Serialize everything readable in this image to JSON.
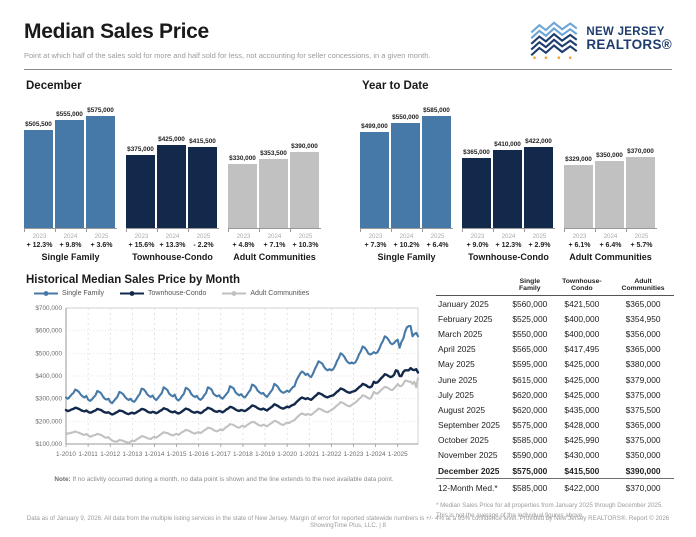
{
  "header": {
    "title": "Median Sales Price",
    "subtitle": "Point at which half of the sales sold for more and half sold for less, not accounting for seller concessions, in a given month.",
    "logo_line1": "NEW JERSEY",
    "logo_line2": "REALTORS®"
  },
  "colors": {
    "single_family": "#4679A8",
    "townhouse_condo": "#12294B",
    "adult_communities": "#C1C1C1",
    "logo_navy": "#1E3C6E",
    "logo_blue": "#6CA5D8",
    "logo_orange": "#F2A33A"
  },
  "historical": {
    "note_label": "Note:",
    "note_text": " If no activity occurred during a month, no data point is shown and the line extends to the next available data point."
  },
  "chart_data": [
    {
      "type": "bar",
      "title": "December",
      "scale_max": 575000,
      "groups": [
        {
          "label": "Single Family",
          "color_key": "single_family",
          "bars": [
            {
              "year": "2023",
              "value": 505500,
              "label": "$505,500",
              "pct": "+ 12.3%"
            },
            {
              "year": "2024",
              "value": 555000,
              "label": "$555,000",
              "pct": "+ 9.8%"
            },
            {
              "year": "2025",
              "value": 575000,
              "label": "$575,000",
              "pct": "+ 3.6%"
            }
          ]
        },
        {
          "label": "Townhouse-Condo",
          "color_key": "townhouse_condo",
          "bars": [
            {
              "year": "2023",
              "value": 375000,
              "label": "$375,000",
              "pct": "+ 15.6%"
            },
            {
              "year": "2024",
              "value": 425000,
              "label": "$425,000",
              "pct": "+ 13.3%"
            },
            {
              "year": "2025",
              "value": 415500,
              "label": "$415,500",
              "pct": "- 2.2%"
            }
          ]
        },
        {
          "label": "Adult Communities",
          "color_key": "adult_communities",
          "bars": [
            {
              "year": "2023",
              "value": 330000,
              "label": "$330,000",
              "pct": "+ 4.8%"
            },
            {
              "year": "2024",
              "value": 353500,
              "label": "$353,500",
              "pct": "+ 7.1%"
            },
            {
              "year": "2025",
              "value": 390000,
              "label": "$390,000",
              "pct": "+ 10.3%"
            }
          ]
        }
      ]
    },
    {
      "type": "bar",
      "title": "Year to Date",
      "scale_max": 585000,
      "groups": [
        {
          "label": "Single Family",
          "color_key": "single_family",
          "bars": [
            {
              "year": "2023",
              "value": 499000,
              "label": "$499,000",
              "pct": "+ 7.3%"
            },
            {
              "year": "2024",
              "value": 550000,
              "label": "$550,000",
              "pct": "+ 10.2%"
            },
            {
              "year": "2025",
              "value": 585000,
              "label": "$585,000",
              "pct": "+ 6.4%"
            }
          ]
        },
        {
          "label": "Townhouse-Condo",
          "color_key": "townhouse_condo",
          "bars": [
            {
              "year": "2023",
              "value": 365000,
              "label": "$365,000",
              "pct": "+ 9.0%"
            },
            {
              "year": "2024",
              "value": 410000,
              "label": "$410,000",
              "pct": "+ 12.3%"
            },
            {
              "year": "2025",
              "value": 422000,
              "label": "$422,000",
              "pct": "+ 2.9%"
            }
          ]
        },
        {
          "label": "Adult Communities",
          "color_key": "adult_communities",
          "bars": [
            {
              "year": "2023",
              "value": 329000,
              "label": "$329,000",
              "pct": "+ 6.1%"
            },
            {
              "year": "2024",
              "value": 350000,
              "label": "$350,000",
              "pct": "+ 6.4%"
            },
            {
              "year": "2025",
              "value": 370000,
              "label": "$370,000",
              "pct": "+ 5.7%"
            }
          ]
        }
      ]
    },
    {
      "type": "line",
      "title": "Historical Median Sales Price by Month",
      "x_description": "monthly, January 2010 through December 2025; values estimated from plot except 2025 (from table) and Decembers (from bar charts)",
      "x_tick_labels": [
        "1-2010",
        "1-2011",
        "1-2012",
        "1-2013",
        "1-2014",
        "1-2015",
        "1-2016",
        "1-2017",
        "1-2018",
        "1-2019",
        "1-2020",
        "1-2021",
        "1-2022",
        "1-2023",
        "1-2024",
        "1-2025"
      ],
      "ylim_k": [
        100,
        700
      ],
      "y_tick_labels": [
        "$100,000",
        "$200,000",
        "$300,000",
        "$400,000",
        "$500,000",
        "$600,000",
        "$700,000"
      ],
      "unit": "thousands of USD",
      "legend_position": "top-left",
      "series": [
        {
          "name": "Single Family",
          "color": "#4679A8",
          "values_k": [
            305,
            300,
            308,
            318,
            325,
            340,
            336,
            330,
            318,
            310,
            305,
            312,
            296,
            290,
            296,
            306,
            315,
            334,
            330,
            324,
            310,
            300,
            296,
            300,
            286,
            280,
            290,
            300,
            310,
            330,
            326,
            320,
            308,
            300,
            294,
            300,
            290,
            286,
            296,
            310,
            320,
            344,
            342,
            334,
            320,
            312,
            308,
            314,
            300,
            294,
            304,
            315,
            325,
            350,
            345,
            338,
            322,
            315,
            310,
            318,
            298,
            292,
            300,
            312,
            322,
            348,
            344,
            336,
            320,
            312,
            308,
            312,
            300,
            295,
            302,
            315,
            325,
            350,
            346,
            340,
            322,
            315,
            310,
            315,
            305,
            300,
            310,
            320,
            330,
            355,
            350,
            345,
            328,
            320,
            315,
            320,
            310,
            305,
            315,
            328,
            338,
            362,
            358,
            350,
            335,
            328,
            322,
            325,
            315,
            308,
            318,
            330,
            340,
            365,
            360,
            352,
            338,
            330,
            326,
            330,
            335,
            330,
            340,
            350,
            355,
            380,
            395,
            410,
            420,
            415,
            405,
            410,
            400,
            395,
            410,
            430,
            445,
            465,
            460,
            455,
            440,
            430,
            425,
            430,
            425,
            430,
            445,
            465,
            480,
            500,
            495,
            485,
            470,
            460,
            455,
            460,
            455,
            460,
            475,
            495,
            510,
            530,
            525,
            515,
            500,
            495,
            498,
            505.5,
            500,
            505,
            520,
            540,
            555,
            575,
            570,
            560,
            545,
            540,
            545,
            555,
            560,
            525,
            550,
            565,
            595,
            615,
            620,
            620,
            575,
            585,
            590,
            575
          ]
        },
        {
          "name": "Townhouse-Condo",
          "color": "#12294B",
          "values_k": [
            250,
            245,
            248,
            252,
            255,
            260,
            258,
            255,
            250,
            246,
            244,
            248,
            242,
            238,
            240,
            245,
            248,
            255,
            252,
            250,
            244,
            240,
            238,
            240,
            235,
            230,
            233,
            238,
            242,
            248,
            246,
            244,
            238,
            234,
            232,
            236,
            238,
            234,
            238,
            244,
            248,
            255,
            253,
            250,
            244,
            240,
            238,
            242,
            240,
            236,
            240,
            246,
            250,
            258,
            255,
            252,
            246,
            242,
            240,
            244,
            238,
            234,
            238,
            244,
            250,
            256,
            254,
            250,
            244,
            240,
            238,
            242,
            240,
            236,
            240,
            248,
            252,
            260,
            257,
            254,
            248,
            244,
            242,
            246,
            244,
            240,
            245,
            252,
            256,
            264,
            262,
            258,
            252,
            248,
            246,
            250,
            248,
            245,
            250,
            256,
            262,
            270,
            268,
            264,
            258,
            254,
            252,
            256,
            252,
            248,
            254,
            260,
            266,
            275,
            272,
            268,
            262,
            258,
            256,
            260,
            265,
            262,
            268,
            272,
            275,
            285,
            292,
            300,
            305,
            302,
            298,
            302,
            298,
            295,
            302,
            310,
            316,
            325,
            322,
            318,
            312,
            308,
            306,
            310,
            312,
            315,
            322,
            330,
            336,
            345,
            342,
            338,
            332,
            328,
            326,
            330,
            332,
            335,
            342,
            350,
            356,
            365,
            362,
            358,
            352,
            350,
            355,
            375,
            370,
            372,
            380,
            390,
            398,
            408,
            405,
            400,
            395,
            398,
            405,
            425,
            421.5,
            400,
            400,
            417.5,
            425,
            425,
            425,
            435,
            428,
            426,
            430,
            415.5
          ]
        },
        {
          "name": "Adult Communities",
          "color": "#C1C1C1",
          "values_k": [
            150,
            145,
            148,
            150,
            152,
            155,
            152,
            150,
            146,
            142,
            140,
            144,
            138,
            132,
            135,
            138,
            140,
            145,
            142,
            140,
            135,
            130,
            128,
            130,
            122,
            115,
            112,
            110,
            112,
            118,
            116,
            114,
            110,
            108,
            105,
            110,
            115,
            112,
            118,
            124,
            128,
            135,
            133,
            130,
            126,
            124,
            122,
            128,
            132,
            128,
            134,
            140,
            145,
            152,
            150,
            148,
            144,
            140,
            138,
            142,
            145,
            140,
            146,
            152,
            156,
            162,
            160,
            158,
            152,
            148,
            146,
            150,
            152,
            148,
            154,
            160,
            165,
            172,
            170,
            168,
            162,
            158,
            156,
            160,
            165,
            160,
            168,
            175,
            180,
            188,
            186,
            184,
            178,
            174,
            172,
            178,
            180,
            175,
            182,
            188,
            192,
            198,
            196,
            192,
            186,
            182,
            180,
            185,
            182,
            178,
            184,
            190,
            195,
            202,
            200,
            196,
            190,
            186,
            184,
            190,
            195,
            192,
            198,
            202,
            205,
            215,
            222,
            230,
            235,
            232,
            228,
            232,
            230,
            228,
            235,
            242,
            248,
            256,
            254,
            250,
            245,
            242,
            240,
            245,
            250,
            255,
            262,
            270,
            276,
            285,
            282,
            278,
            272,
            268,
            266,
            272,
            278,
            282,
            290,
            298,
            305,
            315,
            312,
            308,
            302,
            300,
            310,
            330,
            325,
            322,
            330,
            338,
            345,
            352,
            350,
            346,
            340,
            338,
            345,
            353.5,
            365,
            355,
            356,
            365,
            380,
            379,
            375,
            375.5,
            365,
            375,
            350,
            390
          ]
        }
      ]
    }
  ],
  "table": {
    "columns": [
      "Single Family",
      "Townhouse-Condo",
      "Adult Communities"
    ],
    "rows": [
      {
        "label": "January 2025",
        "values": [
          "$560,000",
          "$421,500",
          "$365,000"
        ]
      },
      {
        "label": "February 2025",
        "values": [
          "$525,000",
          "$400,000",
          "$354,950"
        ]
      },
      {
        "label": "March 2025",
        "values": [
          "$550,000",
          "$400,000",
          "$356,000"
        ]
      },
      {
        "label": "April 2025",
        "values": [
          "$565,000",
          "$417,495",
          "$365,000"
        ]
      },
      {
        "label": "May 2025",
        "values": [
          "$595,000",
          "$425,000",
          "$380,000"
        ]
      },
      {
        "label": "June 2025",
        "values": [
          "$615,000",
          "$425,000",
          "$379,000"
        ]
      },
      {
        "label": "July 2025",
        "values": [
          "$620,000",
          "$425,000",
          "$375,000"
        ]
      },
      {
        "label": "August 2025",
        "values": [
          "$620,000",
          "$435,000",
          "$375,500"
        ]
      },
      {
        "label": "September 2025",
        "values": [
          "$575,000",
          "$428,000",
          "$365,000"
        ]
      },
      {
        "label": "October 2025",
        "values": [
          "$585,000",
          "$425,990",
          "$375,000"
        ]
      },
      {
        "label": "November 2025",
        "values": [
          "$590,000",
          "$430,000",
          "$350,000"
        ]
      },
      {
        "label": "December 2025",
        "values": [
          "$575,000",
          "$415,500",
          "$390,000"
        ],
        "emphasis": true
      },
      {
        "label": "12-Month Med.*",
        "values": [
          "$585,000",
          "$422,000",
          "$370,000"
        ],
        "total": true
      }
    ],
    "footnote": "* Median Sales Price for all properties from January 2025 through December 2025. This is not the average of the individual figures above."
  },
  "footer": "Data as of January 9, 2026. All data from the multiple listing services in the state of New Jersey. Margin of error for reported statewide numbers is +/- 4% at a 95% confidence level. Provided by New Jersey REALTORS®. Report © 2026 ShowingTime Plus, LLC.  |  8"
}
